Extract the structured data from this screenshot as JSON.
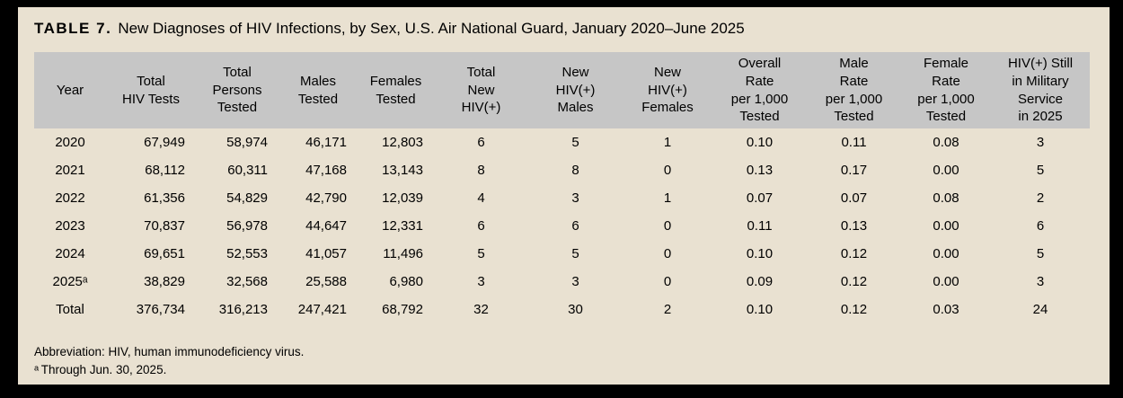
{
  "title": {
    "label": "TABLE 7.",
    "text": "New Diagnoses of HIV Infections, by Sex, U.S. Air National Guard, January 2020–June 2025"
  },
  "colors": {
    "frame": "#000000",
    "background": "#e9e1d1",
    "header_band": "#c6c6c6",
    "text": "#000000"
  },
  "table": {
    "columns": [
      "Year",
      "Total\nHIV Tests",
      "Total\nPersons\nTested",
      "Males\nTested",
      "Females\nTested",
      "Total\nNew\nHIV(+)",
      "New\nHIV(+)\nMales",
      "New\nHIV(+)\nFemales",
      "Overall\nRate\nper 1,000\nTested",
      "Male\nRate\nper 1,000\nTested",
      "Female\nRate\nper 1,000\nTested",
      "HIV(+) Still\nin Military\nService\nin 2025"
    ],
    "rows": [
      [
        "2020",
        "67,949",
        "58,974",
        "46,171",
        "12,803",
        "6",
        "5",
        "1",
        "0.10",
        "0.11",
        "0.08",
        "3"
      ],
      [
        "2021",
        "68,112",
        "60,311",
        "47,168",
        "13,143",
        "8",
        "8",
        "0",
        "0.13",
        "0.17",
        "0.00",
        "5"
      ],
      [
        "2022",
        "61,356",
        "54,829",
        "42,790",
        "12,039",
        "4",
        "3",
        "1",
        "0.07",
        "0.07",
        "0.08",
        "2"
      ],
      [
        "2023",
        "70,837",
        "56,978",
        "44,647",
        "12,331",
        "6",
        "6",
        "0",
        "0.11",
        "0.13",
        "0.00",
        "6"
      ],
      [
        "2024",
        "69,651",
        "52,553",
        "41,057",
        "11,496",
        "5",
        "5",
        "0",
        "0.10",
        "0.12",
        "0.00",
        "5"
      ],
      [
        "2025ᵃ",
        "38,829",
        "32,568",
        "25,588",
        "6,980",
        "3",
        "3",
        "0",
        "0.09",
        "0.12",
        "0.00",
        "3"
      ],
      [
        "Total",
        "376,734",
        "316,213",
        "247,421",
        "68,792",
        "32",
        "30",
        "2",
        "0.10",
        "0.12",
        "0.03",
        "24"
      ]
    ]
  },
  "footnotes": {
    "abbreviation": "Abbreviation: HIV, human immunodeficiency virus.",
    "note_a": "ᵃ Through Jun. 30, 2025."
  }
}
